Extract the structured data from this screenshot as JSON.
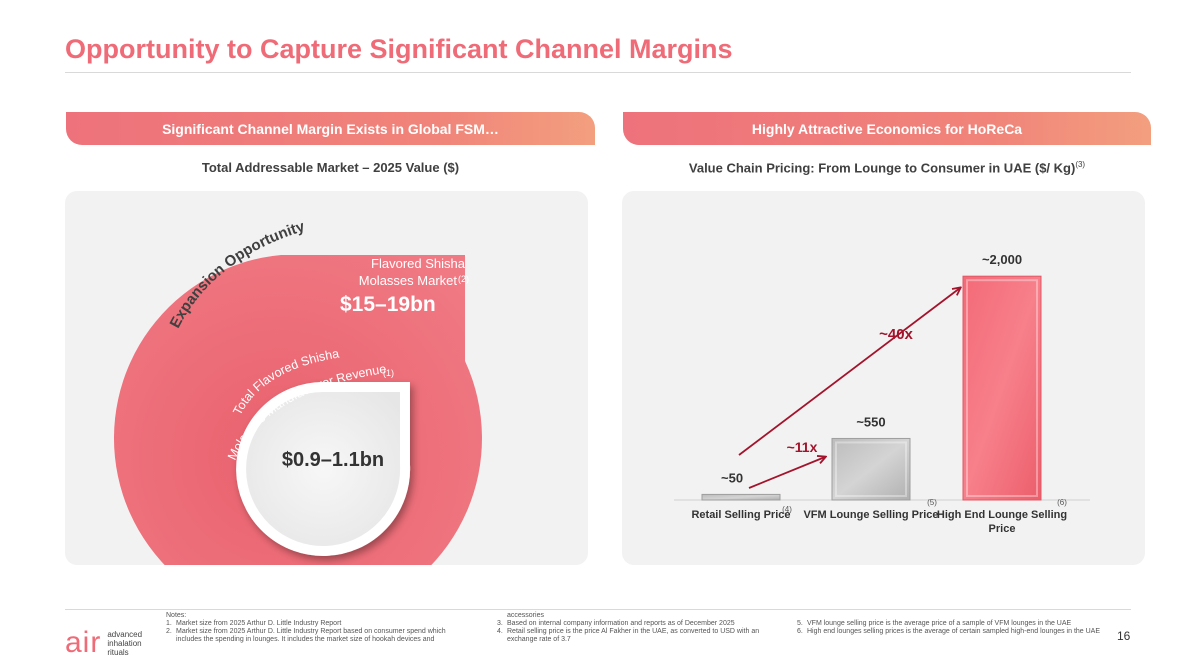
{
  "slide": {
    "title": "Opportunity to Capture Significant Channel Margins",
    "page_number": "16"
  },
  "left_panel": {
    "banner": "Significant Channel Margin Exists in Global FSM…",
    "subtitle": "Total Addressable Market – 2025 Value ($)",
    "arc_label": "Expansion Opportunity",
    "outer_label_line1": "Flavored Shisha",
    "outer_label_line2": "Molasses Market",
    "outer_label_sup": "(2)",
    "outer_value": "$15–19bn",
    "inner_label_line1": "Total Flavored Shisha",
    "inner_label_line2": "Molasses Manufacturer Revenue",
    "inner_label_sup": "(1)",
    "inner_value": "$0.9–1.1bn"
  },
  "right_panel": {
    "banner": "Highly Attractive Economics for HoReCa",
    "subtitle": "Value Chain Pricing: From Lounge to Consumer in UAE ($/ Kg)",
    "subtitle_sup": "(3)"
  },
  "chart_data": {
    "type": "bar",
    "categories": [
      "Retail Selling Price",
      "VFM Lounge Selling Price",
      "High End Lounge Selling Price"
    ],
    "category_footnotes": [
      "(4)",
      "(5)",
      "(6)"
    ],
    "values": [
      50,
      550,
      2000
    ],
    "data_labels": [
      "~50",
      "~550",
      "~2,000"
    ],
    "bar_colors": [
      "#c8c8c8",
      "#c8c8c8",
      "#f5727e"
    ],
    "multipliers": [
      {
        "label": "~11x",
        "from": "Retail Selling Price",
        "to": "VFM Lounge Selling Price"
      },
      {
        "label": "~40x",
        "from": "Retail Selling Price",
        "to": "High End Lounge Selling Price"
      }
    ],
    "arrow_color": "#a3142c",
    "ylim": [
      0,
      2100
    ],
    "title": "",
    "xlabel": "",
    "ylabel": ""
  },
  "logo": {
    "wordmark": "air",
    "line1": "advanced",
    "line2": "inhalation",
    "line3": "rituals"
  },
  "notes": {
    "heading": "Notes:",
    "col1": [
      {
        "num": "1.",
        "text": "Market size from 2025 Arthur D. Little Industry Report"
      },
      {
        "num": "2.",
        "text": "Market size from 2025 Arthur D. Little Industry Report based on consumer spend which includes the spending in lounges. It includes the market size of hookah devices and"
      }
    ],
    "col2_cont": "accessories",
    "col2": [
      {
        "num": "3.",
        "text": "Based on internal company information and reports as of December 2025"
      },
      {
        "num": "4.",
        "text": "Retail selling price is the price Al Fakher in the UAE, as converted to USD with an exchange rate of 3.7"
      }
    ],
    "col3": [
      {
        "num": "5.",
        "text": "VFM lounge selling price is the average price of a sample of VFM lounges in the UAE"
      },
      {
        "num": "6.",
        "text": "High end lounges selling prices is the average of certain sampled high-end lounges in the UAE"
      }
    ]
  }
}
